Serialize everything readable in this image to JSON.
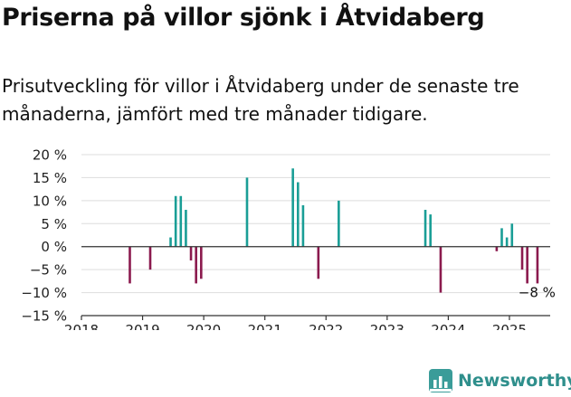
{
  "title": "Priserna på villor sjönk i Åtvidaberg",
  "subtitle": "Prisutveckling för villor i Åtvidaberg under de senaste tre månaderna, jämfört med tre månader tidigare.",
  "brand": {
    "name": "Newsworthy",
    "logo_icon": "bar-chart-logo-icon"
  },
  "colors": {
    "positive": "#1a9e96",
    "negative": "#8b1a4e",
    "axis": "#333333",
    "grid": "#dddddd",
    "brand": "#2f8f8c"
  },
  "chart_data": {
    "type": "bar",
    "title": "",
    "xlabel": "",
    "ylabel": "",
    "x_ticks": [
      "2018",
      "2019",
      "2020",
      "2021",
      "2022",
      "2023",
      "2024",
      "2025"
    ],
    "y_ticks": [
      "20 %",
      "15 %",
      "10 %",
      "5 %",
      "0 %",
      "−5 %",
      "−10 %",
      "−15 %"
    ],
    "ylim": [
      -15,
      20
    ],
    "xlim": [
      "2018-01",
      "2025-09"
    ],
    "grid": true,
    "annotation": "−8 %",
    "series": [
      {
        "points": [
          {
            "x": "2018-10",
            "y": -8
          },
          {
            "x": "2019-02",
            "y": -5
          },
          {
            "x": "2019-06",
            "y": 2
          },
          {
            "x": "2019-07",
            "y": 11
          },
          {
            "x": "2019-08",
            "y": 11
          },
          {
            "x": "2019-09",
            "y": 8
          },
          {
            "x": "2019-10",
            "y": -3
          },
          {
            "x": "2019-11",
            "y": -8
          },
          {
            "x": "2019-12",
            "y": -7
          },
          {
            "x": "2020-09",
            "y": 15
          },
          {
            "x": "2021-06",
            "y": 17
          },
          {
            "x": "2021-07",
            "y": 14
          },
          {
            "x": "2021-08",
            "y": 9
          },
          {
            "x": "2021-11",
            "y": -7
          },
          {
            "x": "2022-03",
            "y": 10
          },
          {
            "x": "2023-08",
            "y": 8
          },
          {
            "x": "2023-09",
            "y": 7
          },
          {
            "x": "2023-11",
            "y": -10
          },
          {
            "x": "2024-10",
            "y": -1
          },
          {
            "x": "2024-11",
            "y": 4
          },
          {
            "x": "2024-12",
            "y": 2
          },
          {
            "x": "2025-01",
            "y": 5
          },
          {
            "x": "2025-03",
            "y": -5
          },
          {
            "x": "2025-04",
            "y": -8
          },
          {
            "x": "2025-06",
            "y": -8
          }
        ]
      }
    ]
  }
}
